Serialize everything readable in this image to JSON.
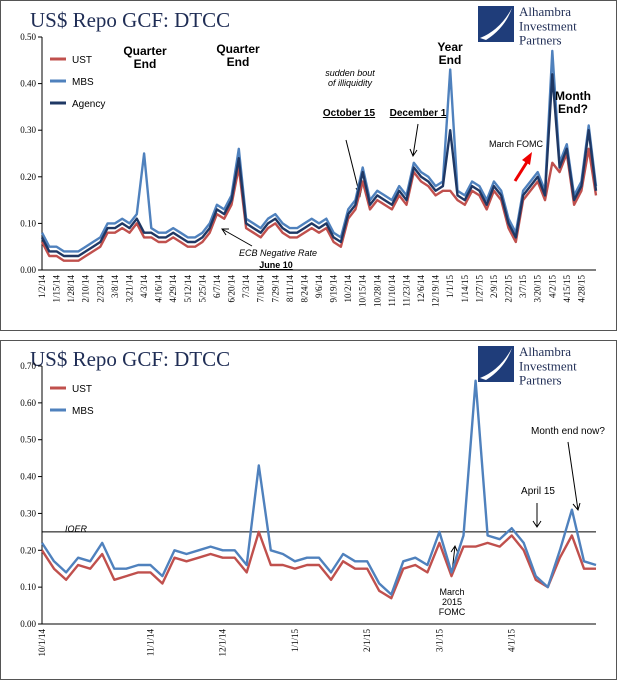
{
  "chart_data": [
    {
      "type": "line",
      "title": "US$ Repo GCF: DTCC",
      "logo": "Alhambra\nInvestment\nPartners",
      "categories": [
        "1/2/14",
        null,
        "1/15/14",
        null,
        "1/28/14",
        null,
        "2/10/14",
        null,
        "2/23/14",
        null,
        "3/8/14",
        null,
        "3/21/14",
        null,
        "4/3/14",
        null,
        "4/16/14",
        null,
        "4/29/14",
        null,
        "5/12/14",
        null,
        "5/25/14",
        null,
        "6/7/14",
        null,
        "6/20/14",
        null,
        "7/3/14",
        null,
        "7/16/14",
        null,
        "7/29/14",
        null,
        "8/11/14",
        null,
        "8/24/14",
        null,
        "9/6/14",
        null,
        "9/19/14",
        null,
        "10/2/14",
        null,
        "10/15/14",
        null,
        "10/28/14",
        null,
        "11/10/14",
        null,
        "11/23/14",
        null,
        "12/6/14",
        null,
        "12/19/14",
        null,
        "1/1/15",
        null,
        "1/14/15",
        null,
        "1/27/15",
        null,
        "2/9/15",
        null,
        "2/22/15",
        null,
        "3/7/15",
        null,
        "3/20/15",
        null,
        "4/2/15",
        null,
        "4/15/15",
        null,
        "4/28/15",
        null,
        null
      ],
      "series": [
        {
          "name": "UST",
          "color": "#c0504d",
          "values": [
            0.06,
            0.03,
            0.03,
            0.02,
            0.02,
            0.02,
            0.03,
            0.04,
            0.05,
            0.08,
            0.08,
            0.09,
            0.08,
            0.1,
            0.07,
            0.07,
            0.06,
            0.06,
            0.07,
            0.06,
            0.05,
            0.05,
            0.06,
            0.08,
            0.12,
            0.11,
            0.14,
            0.22,
            0.09,
            0.08,
            0.07,
            0.09,
            0.1,
            0.08,
            0.07,
            0.07,
            0.08,
            0.09,
            0.08,
            0.09,
            0.06,
            0.05,
            0.11,
            0.13,
            0.19,
            0.13,
            0.15,
            0.14,
            0.13,
            0.16,
            0.14,
            0.21,
            0.19,
            0.18,
            0.16,
            0.17,
            0.17,
            0.15,
            0.14,
            0.17,
            0.16,
            0.13,
            0.17,
            0.15,
            0.09,
            0.06,
            0.15,
            0.17,
            0.19,
            0.15,
            0.23,
            0.21,
            0.25,
            0.14,
            0.17,
            0.26,
            0.16
          ]
        },
        {
          "name": "MBS",
          "color": "#4f81bd",
          "values": [
            0.08,
            0.05,
            0.05,
            0.04,
            0.04,
            0.04,
            0.05,
            0.06,
            0.07,
            0.1,
            0.1,
            0.11,
            0.1,
            0.12,
            0.25,
            0.09,
            0.08,
            0.08,
            0.09,
            0.08,
            0.07,
            0.07,
            0.08,
            0.1,
            0.14,
            0.13,
            0.16,
            0.26,
            0.11,
            0.1,
            0.09,
            0.11,
            0.12,
            0.1,
            0.09,
            0.09,
            0.1,
            0.11,
            0.1,
            0.11,
            0.08,
            0.07,
            0.13,
            0.15,
            0.22,
            0.15,
            0.17,
            0.16,
            0.15,
            0.18,
            0.16,
            0.23,
            0.21,
            0.2,
            0.18,
            0.19,
            0.43,
            0.17,
            0.16,
            0.19,
            0.18,
            0.15,
            0.19,
            0.17,
            0.11,
            0.08,
            0.17,
            0.19,
            0.21,
            0.17,
            0.47,
            0.23,
            0.27,
            0.16,
            0.19,
            0.31,
            0.18
          ]
        },
        {
          "name": "Agency",
          "color": "#1f3864",
          "values": [
            0.07,
            0.04,
            0.04,
            0.03,
            0.03,
            0.03,
            0.04,
            0.05,
            0.06,
            0.09,
            0.09,
            0.1,
            0.09,
            0.11,
            0.08,
            0.08,
            0.07,
            0.07,
            0.08,
            0.07,
            0.06,
            0.06,
            0.07,
            0.09,
            0.13,
            0.12,
            0.15,
            0.24,
            0.1,
            0.09,
            0.08,
            0.1,
            0.11,
            0.09,
            0.08,
            0.08,
            0.09,
            0.1,
            0.09,
            0.1,
            0.07,
            0.06,
            0.12,
            0.14,
            0.21,
            0.14,
            0.16,
            0.15,
            0.14,
            0.17,
            0.15,
            0.22,
            0.2,
            0.19,
            0.17,
            0.18,
            0.3,
            0.16,
            0.15,
            0.18,
            0.17,
            0.14,
            0.18,
            0.16,
            0.1,
            0.07,
            0.16,
            0.18,
            0.2,
            0.16,
            0.42,
            0.22,
            0.26,
            0.15,
            0.18,
            0.3,
            0.17
          ]
        }
      ],
      "ylim": [
        0,
        0.5
      ],
      "yticks": [
        {
          "value": 0,
          "label": "0.00"
        },
        {
          "value": 0.1,
          "label": "0.10"
        },
        {
          "value": 0.2,
          "label": "0.20"
        },
        {
          "value": 0.3,
          "label": "0.30"
        },
        {
          "value": 0.4,
          "label": "0.40"
        },
        {
          "value": 0.5,
          "label": "0.50"
        }
      ],
      "legend": "upper left",
      "annotations": [
        "Quarter\nEnd",
        "Quarter\nEnd",
        "Year\nEnd",
        "Month\nEnd?",
        "sudden bout\nof illiquidity",
        "October 15",
        "December 1",
        "March FOMC",
        "ECB Negative Rate",
        "June 10"
      ]
    },
    {
      "type": "line",
      "title": "US$ Repo GCF: DTCC",
      "logo": "Alhambra\nInvestment\nPartners",
      "categories": [
        "10/1/14",
        null,
        null,
        null,
        null,
        null,
        null,
        null,
        null,
        "11/1/14",
        null,
        null,
        null,
        null,
        null,
        "12/1/14",
        null,
        null,
        null,
        null,
        null,
        "1/1/15",
        null,
        null,
        null,
        null,
        null,
        "2/1/15",
        null,
        null,
        null,
        null,
        null,
        "3/1/15",
        null,
        null,
        null,
        null,
        null,
        "4/1/15",
        null,
        null,
        null,
        null,
        null,
        null,
        null
      ],
      "series": [
        {
          "name": "UST",
          "color": "#c0504d",
          "values": [
            0.2,
            0.15,
            0.12,
            0.16,
            0.15,
            0.19,
            0.12,
            0.13,
            0.14,
            0.14,
            0.11,
            0.18,
            0.17,
            0.18,
            0.19,
            0.18,
            0.18,
            0.14,
            0.25,
            0.16,
            0.16,
            0.15,
            0.16,
            0.16,
            0.12,
            0.17,
            0.15,
            0.15,
            0.09,
            0.07,
            0.15,
            0.16,
            0.14,
            0.22,
            0.13,
            0.21,
            0.21,
            0.22,
            0.21,
            0.24,
            0.2,
            0.12,
            0.1,
            0.18,
            0.24,
            0.15,
            0.15
          ]
        },
        {
          "name": "MBS",
          "color": "#4f81bd",
          "values": [
            0.22,
            0.17,
            0.14,
            0.18,
            0.17,
            0.22,
            0.15,
            0.15,
            0.16,
            0.16,
            0.13,
            0.2,
            0.19,
            0.2,
            0.21,
            0.2,
            0.2,
            0.16,
            0.43,
            0.2,
            0.19,
            0.17,
            0.18,
            0.18,
            0.14,
            0.19,
            0.17,
            0.17,
            0.11,
            0.08,
            0.17,
            0.18,
            0.16,
            0.25,
            0.14,
            0.24,
            0.66,
            0.24,
            0.23,
            0.26,
            0.22,
            0.13,
            0.1,
            0.2,
            0.31,
            0.17,
            0.16
          ]
        }
      ],
      "ylim": [
        0,
        0.7
      ],
      "yticks": [
        {
          "value": 0,
          "label": "0.00"
        },
        {
          "value": 0.1,
          "label": "0.10"
        },
        {
          "value": 0.2,
          "label": "0.20"
        },
        {
          "value": 0.3,
          "label": "0.30"
        },
        {
          "value": 0.4,
          "label": "0.40"
        },
        {
          "value": 0.5,
          "label": "0.50"
        },
        {
          "value": 0.6,
          "label": "0.60"
        },
        {
          "value": 0.7,
          "label": "0.70"
        }
      ],
      "legend": "upper left",
      "reference_line": 0.25,
      "annotations": [
        "IOER",
        "March\n2015\nFOMC",
        "April 15",
        "Month end now?"
      ]
    }
  ]
}
